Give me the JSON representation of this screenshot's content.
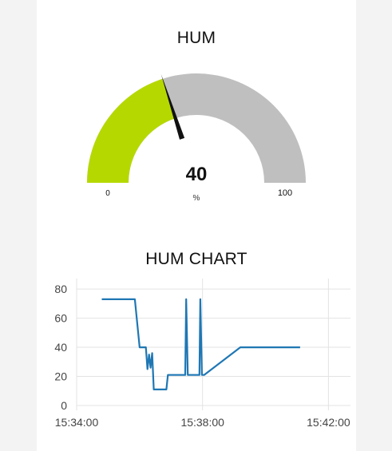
{
  "gauge": {
    "title": "HUM",
    "value": 40,
    "display_value": "40",
    "unit": "%",
    "min": 0,
    "max": 100,
    "min_label": "0",
    "max_label": "100",
    "fill_color": "#b5d900",
    "track_color": "#bfbfbf",
    "needle_color": "#111111"
  },
  "chart": {
    "title": "HUM CHART"
  },
  "chart_data": {
    "type": "line",
    "title": "HUM CHART",
    "xlabel": "",
    "ylabel": "",
    "x_ticks": [
      "15:34:00",
      "15:38:00",
      "15:42:00"
    ],
    "x_tick_values_min": [
      0,
      4,
      8
    ],
    "y_ticks": [
      0,
      20,
      40,
      60,
      80
    ],
    "ylim": [
      0,
      85
    ],
    "xlim_min": [
      0,
      8.7
    ],
    "grid": true,
    "series": [
      {
        "color": "#1f77b4",
        "x_min": [
          0.8,
          1.85,
          2.0,
          2.2,
          2.25,
          2.3,
          2.35,
          2.4,
          2.45,
          2.85,
          2.9,
          3.45,
          3.48,
          3.53,
          3.9,
          3.93,
          3.98,
          4.05,
          5.2,
          7.1
        ],
        "y": [
          73,
          73,
          40,
          40,
          25,
          35,
          26,
          36,
          11,
          11,
          21,
          21,
          73,
          21,
          21,
          73,
          21,
          21,
          40,
          40
        ]
      }
    ]
  }
}
